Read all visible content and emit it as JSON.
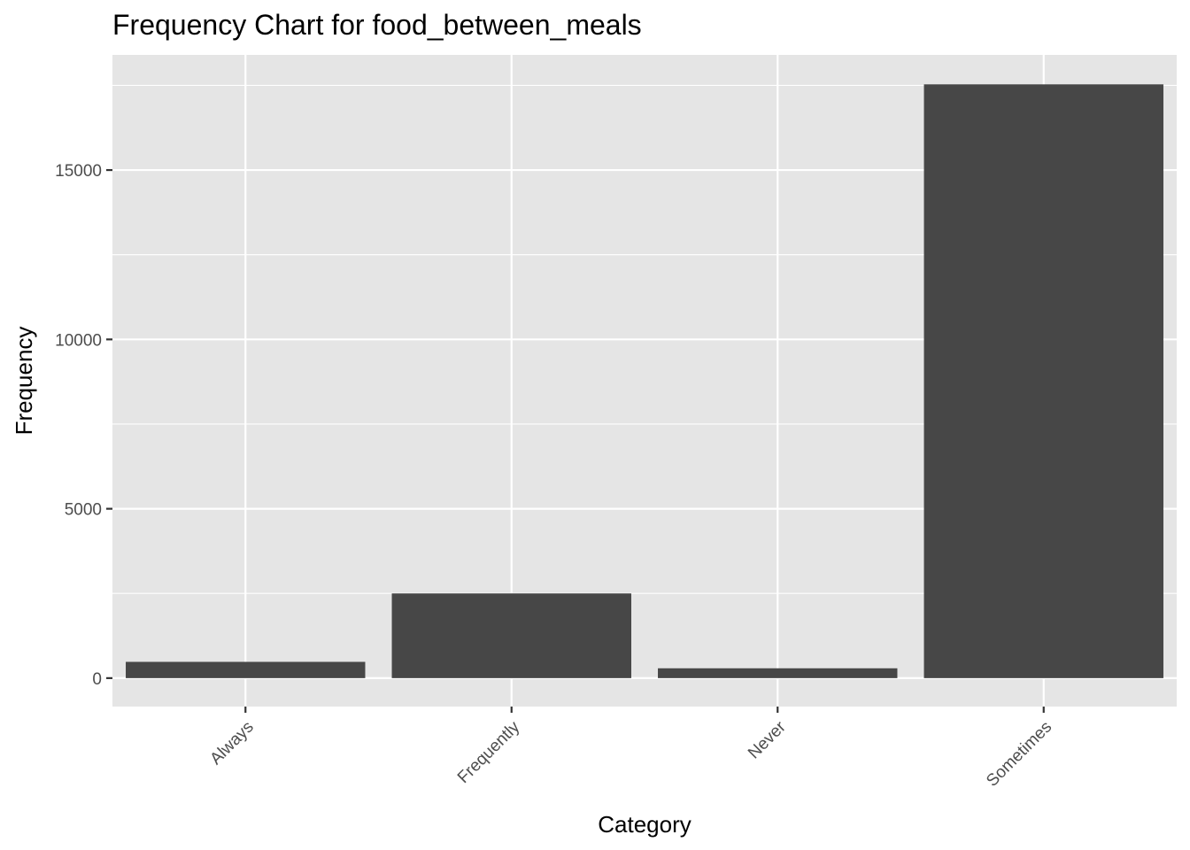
{
  "chart_data": {
    "type": "bar",
    "title": "Frequency Chart for food_between_meals",
    "xlabel": "Category",
    "ylabel": "Frequency",
    "categories": [
      "Always",
      "Frequently",
      "Never",
      "Sometimes"
    ],
    "values": [
      480,
      2500,
      290,
      17530
    ],
    "ylim": [
      -840,
      18400
    ],
    "yticks": [
      0,
      5000,
      10000,
      15000
    ],
    "ytick_labels": [
      "0",
      "5000",
      "10000",
      "15000"
    ],
    "grid": true,
    "legend": "none",
    "colors": {
      "bar": "#474747",
      "panel": "#e5e5e5",
      "grid": "#ffffff"
    }
  }
}
